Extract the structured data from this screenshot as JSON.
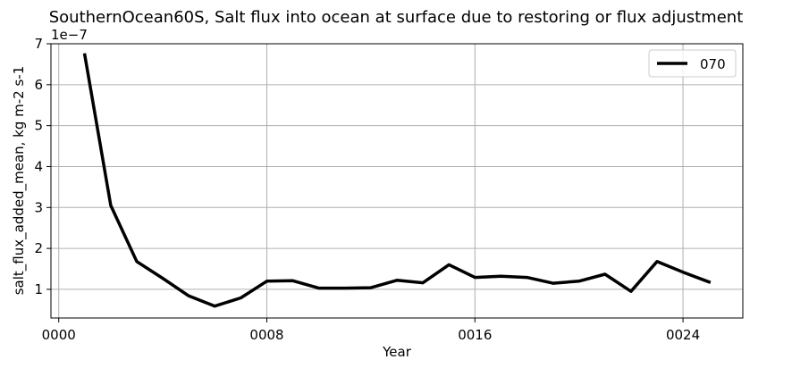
{
  "chart_data": {
    "type": "line",
    "title": "SouthernOcean60S, Salt flux into ocean at surface due to restoring or flux adjustment",
    "xlabel": "Year",
    "ylabel": "salt_flux_added_mean, kg m-2 s-1",
    "y_offset_label": "1e−7",
    "xlim": [
      -0.3,
      26.3
    ],
    "ylim": [
      0.3,
      7.0
    ],
    "x_ticks": [
      0,
      8,
      16,
      24
    ],
    "x_tick_labels": [
      "0000",
      "0008",
      "0016",
      "0024"
    ],
    "y_ticks": [
      1,
      2,
      3,
      4,
      5,
      6,
      7
    ],
    "y_tick_labels": [
      "1",
      "2",
      "3",
      "4",
      "5",
      "6",
      "7"
    ],
    "grid": true,
    "legend_position": "top-right",
    "series": [
      {
        "name": "070",
        "color": "#000000",
        "x": [
          1,
          2,
          3,
          4,
          5,
          6,
          7,
          8,
          9,
          10,
          11,
          12,
          13,
          14,
          15,
          16,
          17,
          18,
          19,
          20,
          21,
          22,
          23,
          24,
          25
        ],
        "values": [
          6.73,
          3.05,
          1.68,
          1.27,
          0.84,
          0.59,
          0.79,
          1.2,
          1.21,
          1.03,
          1.03,
          1.04,
          1.22,
          1.16,
          1.6,
          1.29,
          1.32,
          1.29,
          1.15,
          1.2,
          1.37,
          0.95,
          1.68,
          1.42,
          1.18
        ]
      }
    ]
  }
}
